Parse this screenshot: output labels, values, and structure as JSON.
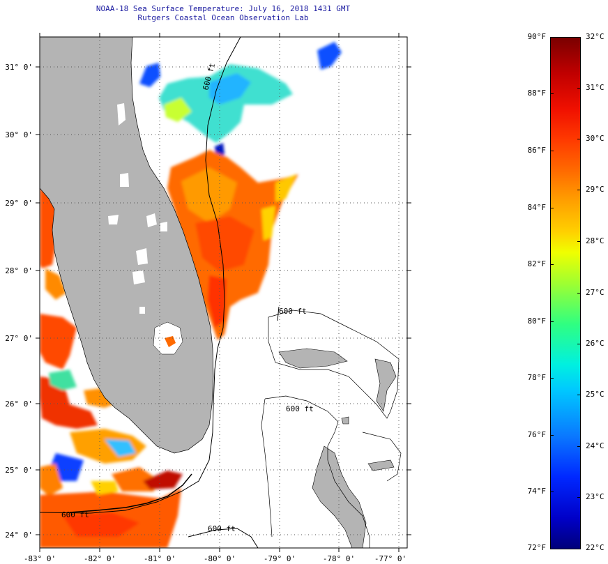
{
  "title": {
    "line1": "NOAA-18 Sea Surface Temperature:  July 16, 2018 1431 GMT",
    "line2": "Rutgers Coastal Ocean Observation Lab"
  },
  "map": {
    "longitude_labels": [
      "-83° 0'",
      "-82° 0'",
      "-81° 0'",
      "-80° 0'",
      "-79° 0'",
      "-78° 0'",
      "-77° 0'"
    ],
    "latitude_labels": [
      "31° 0'",
      "30° 0'",
      "29° 0'",
      "28° 0'",
      "27° 0'",
      "26° 0'",
      "25° 0'",
      "24° 0'"
    ],
    "contour_labels": [
      "600 ft",
      "600 ft",
      "600 ft",
      "600 ft",
      "600 ft"
    ],
    "colors": {
      "land": "#b4b4b4",
      "no_data": "#ffffff",
      "title": "#1a1aa0"
    }
  },
  "colorbar": {
    "fahrenheit_labels": [
      "90°F",
      "88°F",
      "86°F",
      "84°F",
      "82°F",
      "80°F",
      "78°F",
      "76°F",
      "74°F",
      "72°F"
    ],
    "celsius_labels": [
      "32°C",
      "31°C",
      "30°C",
      "29°C",
      "28°C",
      "27°C",
      "26°C",
      "25°C",
      "24°C",
      "23°C",
      "22°C"
    ]
  }
}
